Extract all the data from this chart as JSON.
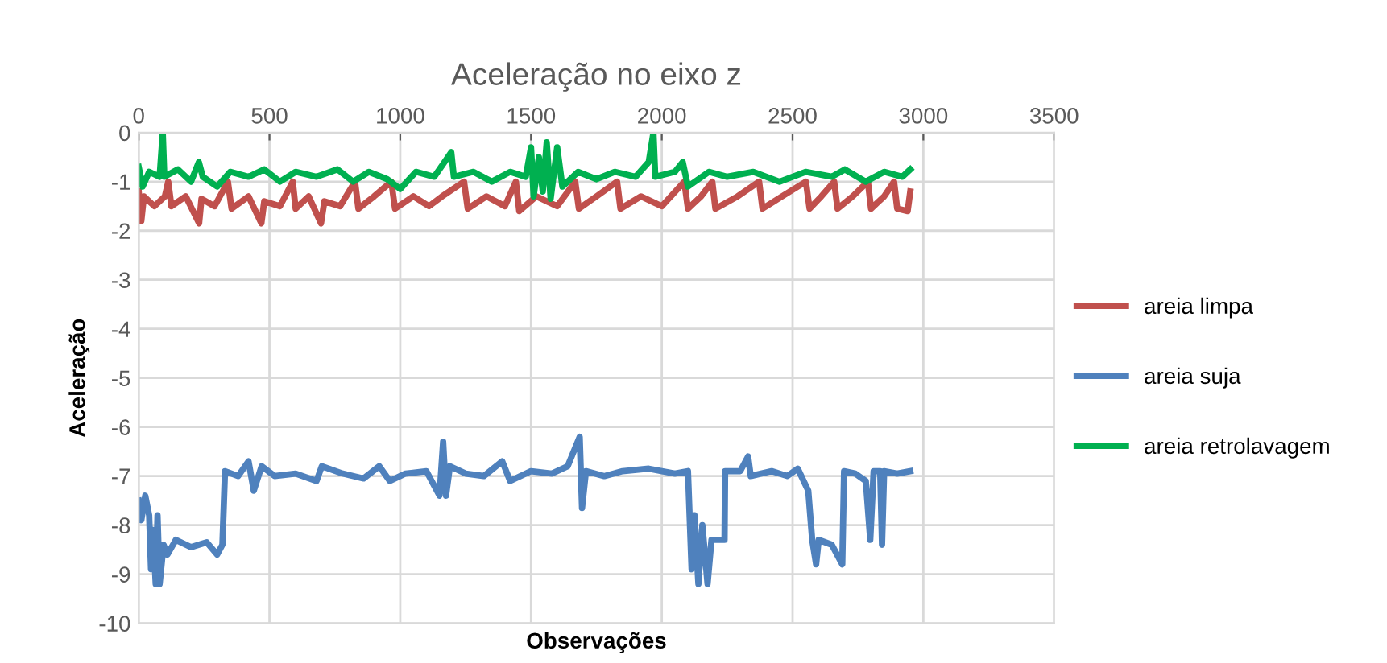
{
  "chart_data": {
    "type": "line",
    "title": "Aceleração no eixo z",
    "xlabel": "Observações",
    "ylabel": "Aceleração",
    "xlim": [
      0,
      3500
    ],
    "xticks": [
      0,
      500,
      1000,
      1500,
      2000,
      2500,
      3000,
      3500
    ],
    "ylim": [
      -10,
      0
    ],
    "yticks": [
      -10,
      -9,
      -8,
      -7,
      -6,
      -5,
      -4,
      -3,
      -2,
      -1,
      0
    ],
    "grid": true,
    "legend": "right",
    "marker": "none",
    "line_style": "solid",
    "series": [
      {
        "name": "areia limpa",
        "color": "#c0504d",
        "x": [
          0,
          10,
          20,
          60,
          100,
          113,
          125,
          180,
          231,
          240,
          290,
          341,
          355,
          420,
          469,
          480,
          540,
          589,
          600,
          650,
          697,
          710,
          770,
          827,
          840,
          900,
          966,
          980,
          1050,
          1110,
          1160,
          1244,
          1258,
          1330,
          1400,
          1442,
          1455,
          1520,
          1600,
          1669,
          1683,
          1750,
          1829,
          1842,
          1920,
          2000,
          2086,
          2100,
          2150,
          2193,
          2205,
          2290,
          2372,
          2385,
          2460,
          2551,
          2565,
          2610,
          2659,
          2672,
          2730,
          2788,
          2800,
          2850,
          2888,
          2900,
          2940,
          2950
        ],
        "values": [
          -1.2,
          -1.8,
          -1.3,
          -1.5,
          -1.3,
          -1.0,
          -1.5,
          -1.3,
          -1.85,
          -1.35,
          -1.5,
          -1.0,
          -1.55,
          -1.3,
          -1.85,
          -1.4,
          -1.5,
          -1.0,
          -1.55,
          -1.3,
          -1.85,
          -1.4,
          -1.5,
          -1.0,
          -1.55,
          -1.3,
          -1.0,
          -1.55,
          -1.3,
          -1.5,
          -1.3,
          -1.0,
          -1.55,
          -1.3,
          -1.5,
          -1.0,
          -1.6,
          -1.3,
          -1.5,
          -1.0,
          -1.55,
          -1.3,
          -1.0,
          -1.55,
          -1.3,
          -1.5,
          -1.0,
          -1.55,
          -1.3,
          -1.0,
          -1.55,
          -1.3,
          -1.0,
          -1.55,
          -1.3,
          -1.0,
          -1.55,
          -1.3,
          -1.0,
          -1.55,
          -1.3,
          -1.0,
          -1.55,
          -1.3,
          -1.0,
          -1.55,
          -1.6,
          -1.2
        ]
      },
      {
        "name": "areia suja",
        "color": "#4f81bd",
        "x": [
          0,
          10,
          25,
          40,
          47,
          55,
          65,
          72,
          80,
          95,
          110,
          142,
          200,
          260,
          300,
          320,
          330,
          380,
          420,
          440,
          470,
          520,
          600,
          680,
          700,
          780,
          860,
          920,
          960,
          1020,
          1100,
          1150,
          1164,
          1175,
          1190,
          1250,
          1320,
          1390,
          1420,
          1500,
          1580,
          1640,
          1686,
          1695,
          1710,
          1780,
          1850,
          1950,
          2050,
          2100,
          2114,
          2125,
          2140,
          2155,
          2175,
          2190,
          2240,
          2242,
          2300,
          2330,
          2340,
          2420,
          2480,
          2520,
          2560,
          2575,
          2590,
          2600,
          2650,
          2690,
          2697,
          2740,
          2780,
          2797,
          2810,
          2835,
          2842,
          2850,
          2900,
          2950
        ],
        "values": [
          -7.5,
          -7.9,
          -7.4,
          -7.8,
          -8.9,
          -8.1,
          -9.2,
          -7.8,
          -9.2,
          -8.4,
          -8.6,
          -8.3,
          -8.45,
          -8.35,
          -8.6,
          -8.4,
          -6.9,
          -7.0,
          -6.7,
          -7.3,
          -6.8,
          -7.0,
          -6.95,
          -7.1,
          -6.8,
          -6.95,
          -7.05,
          -6.8,
          -7.1,
          -6.95,
          -6.9,
          -7.4,
          -6.3,
          -7.4,
          -6.8,
          -6.95,
          -7.0,
          -6.7,
          -7.1,
          -6.9,
          -6.95,
          -6.8,
          -6.2,
          -7.65,
          -6.9,
          -7.0,
          -6.9,
          -6.85,
          -6.95,
          -6.9,
          -8.9,
          -7.8,
          -9.2,
          -8.0,
          -9.2,
          -8.3,
          -8.3,
          -6.9,
          -6.9,
          -6.6,
          -7.0,
          -6.9,
          -7.0,
          -6.85,
          -7.3,
          -8.3,
          -8.8,
          -8.3,
          -8.4,
          -8.8,
          -6.9,
          -6.95,
          -7.1,
          -8.3,
          -6.9,
          -6.9,
          -8.4,
          -6.9,
          -6.95,
          -6.9
        ]
      },
      {
        "name": "areia retrolavagem",
        "color": "#00b050",
        "x": [
          0,
          15,
          40,
          80,
          92,
          98,
          150,
          200,
          230,
          245,
          300,
          350,
          420,
          480,
          540,
          600,
          680,
          760,
          820,
          880,
          950,
          1000,
          1060,
          1130,
          1195,
          1205,
          1280,
          1350,
          1420,
          1480,
          1500,
          1510,
          1530,
          1545,
          1560,
          1575,
          1600,
          1620,
          1680,
          1750,
          1820,
          1900,
          1950,
          1968,
          1975,
          2050,
          2080,
          2100,
          2180,
          2250,
          2350,
          2450,
          2550,
          2650,
          2700,
          2780,
          2850,
          2920,
          2950
        ],
        "values": [
          -0.7,
          -1.1,
          -0.8,
          -0.9,
          0,
          -0.9,
          -0.75,
          -1.0,
          -0.6,
          -0.9,
          -1.1,
          -0.8,
          -0.9,
          -0.75,
          -1.0,
          -0.8,
          -0.9,
          -0.75,
          -1.0,
          -0.8,
          -0.95,
          -1.15,
          -0.8,
          -0.9,
          -0.4,
          -0.9,
          -0.8,
          -1.0,
          -0.8,
          -0.9,
          -0.3,
          -1.3,
          -0.5,
          -1.2,
          -0.2,
          -1.35,
          -0.3,
          -1.1,
          -0.8,
          -0.95,
          -0.8,
          -0.9,
          -0.6,
          0,
          -0.9,
          -0.8,
          -0.6,
          -1.1,
          -0.8,
          -0.9,
          -0.8,
          -1.0,
          -0.8,
          -0.9,
          -0.75,
          -1.0,
          -0.8,
          -0.9,
          -0.75
        ]
      }
    ]
  }
}
